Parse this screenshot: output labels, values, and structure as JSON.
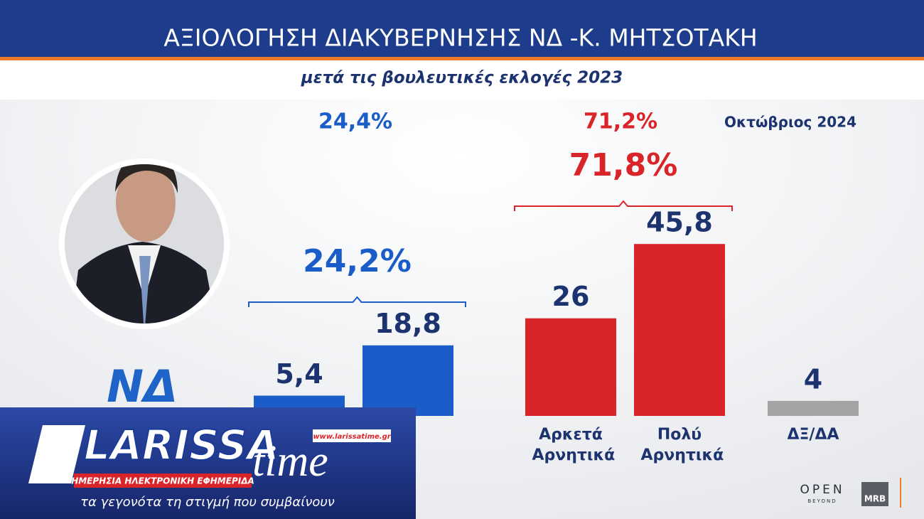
{
  "header": {
    "title": "ΑΞΙΟΛΟΓΗΣΗ ΔΙΑΚΥΒΕΡΝΗΣΗΣ ΝΔ -Κ. ΜΗΤΣΟΤΑΚΗ",
    "subtitle": "μετά τις βουλευτικές εκλογές 2023"
  },
  "chart_data": {
    "type": "bar",
    "categories": [
      null,
      null,
      "Αρκετά Αρνητικά",
      "Πολύ Αρνητικά",
      "ΔΞ/ΔΑ"
    ],
    "values": [
      5.4,
      18.8,
      26,
      45.8,
      4
    ],
    "value_labels": [
      "5,4",
      "18,8",
      "26",
      "45,8",
      "4"
    ],
    "colors": [
      "#1a5cc8",
      "#1a5cc8",
      "#d9252a",
      "#d9252a",
      "#a3a3a3"
    ],
    "group_totals": [
      "24,2%",
      "71,8%"
    ],
    "previous_totals": [
      "24,4%",
      "71,2%"
    ],
    "previous_label": "Οκτώβριος 2024"
  },
  "party_logo": "ΝΔ",
  "overlay": {
    "brand": "LARISSA",
    "brand_suffix": "time",
    "url": "www.larissatime.gr",
    "strap": "ΗΜΕΡΗΣΙΑ ΗΛΕΚΤΡΟΝΙΚΗ ΕΦΗΜΕΡΙΔΑ",
    "tagline": "τα γεγονότα τη στιγμή που συμβαίνουν"
  },
  "logos": {
    "channel": "OPEN",
    "channel_sub": "BEYOND",
    "pollster": "MRB"
  }
}
